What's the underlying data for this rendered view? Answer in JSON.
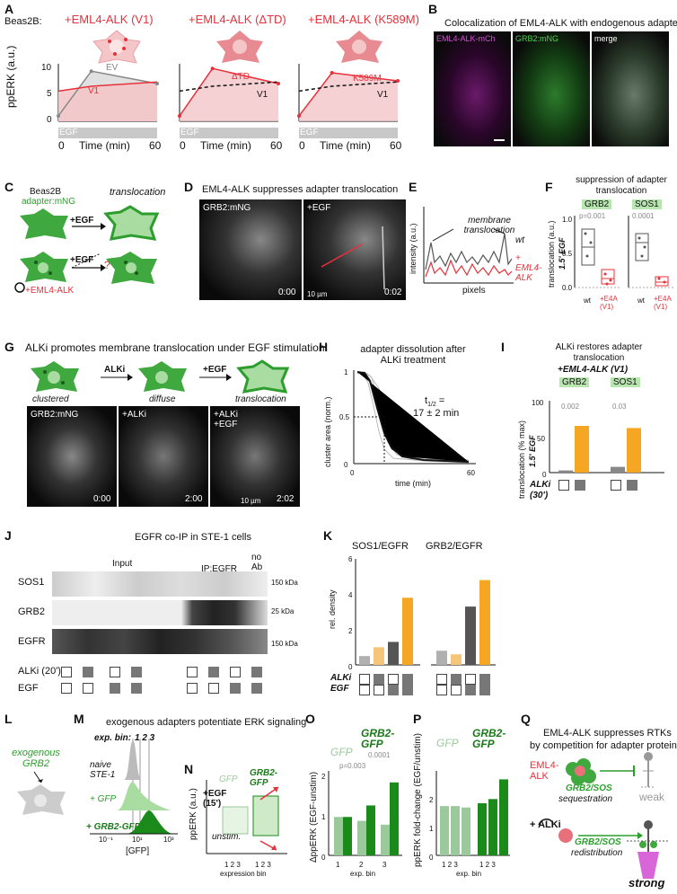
{
  "panels": {
    "A": {
      "label": "A",
      "cell_line": "Beas2B:",
      "titles": [
        "+EML4-ALK (V1)",
        "+EML4-ALK (ΔTD)",
        "+EML4-ALK (K589M)"
      ],
      "ylabel": "ppERK (a.u.)",
      "xlabel": "Time (min)",
      "yticks": [
        "0",
        "5",
        "10"
      ],
      "xticks": [
        "0",
        "20",
        "40",
        "60"
      ],
      "egf": "EGF",
      "series_labels": [
        "EV",
        "V1",
        "ΔTD",
        "V1",
        "K589M",
        "V1"
      ]
    },
    "B": {
      "label": "B",
      "title": "Colocalization of EML4-ALK with endogenous adapters",
      "channels": [
        "EML4-ALK-mCh",
        "GRB2:mNG",
        "merge"
      ]
    },
    "C": {
      "label": "C",
      "cell": "Beas2B",
      "adapter": "adapter:mNG",
      "egf1": "+EGF",
      "egf2": "+EGF",
      "translocation": "translocation",
      "question": "?",
      "plasmid": "+EML4-ALK"
    },
    "D": {
      "label": "D",
      "title": "EML4-ALK suppresses adapter translocation",
      "grb2": "GRB2:mNG",
      "egf": "+EGF",
      "time1": "0:00",
      "time2": "0:02",
      "scale": "10 µm"
    },
    "E": {
      "label": "E",
      "annotation": "membrane translocation",
      "wt": "wt",
      "eml4": "+ EML4-ALK",
      "ylabel": "intensity (a.u.)",
      "xlabel": "pixels"
    },
    "F": {
      "label": "F",
      "title": "suppression of adapter translocation",
      "proteins": [
        "GRB2",
        "SOS1"
      ],
      "pvalues": [
        "p=0.001",
        "0.0001"
      ],
      "ylabel": "translocation (a.u.)",
      "ysub": "1.5' EGF",
      "yticks": [
        "0.0",
        "0.5",
        "1.0"
      ],
      "xlabels": [
        "wt",
        "+E4A (V1)",
        "wt",
        "+E4A (V1)"
      ]
    },
    "G": {
      "label": "G",
      "title": "ALKi promotes membrane translocation under EGF stimulation",
      "states": [
        "clustered",
        "diffuse",
        "translocation"
      ],
      "arrows": [
        "ALKi",
        "+EGF"
      ],
      "img_labels": [
        "GRB2:mNG",
        "+ALKi",
        "+ALKi +EGF"
      ],
      "times": [
        "0:00",
        "2:00",
        "2:02"
      ],
      "scale": "10 µm"
    },
    "H": {
      "label": "H",
      "title": "adapter dissolution after ALKi treatment",
      "ylabel": "cluster area (norm.)",
      "xlabel": "time (min)",
      "yticks": [
        "0",
        "0.5",
        "1"
      ],
      "xticks": [
        "0",
        "20",
        "40",
        "60"
      ],
      "half_life": "t",
      "half_sub": "1/2",
      "half_eq": " =",
      "half_val": "17 ± 2 min"
    },
    "I": {
      "label": "I",
      "title": "ALKi restores adapter translocation",
      "subtitle": "+EML4-ALK (V1)",
      "proteins": [
        "GRB2",
        "SOS1"
      ],
      "pvalues": [
        "0.002",
        "0.03"
      ],
      "ylabel": "translocation (% max)",
      "ysub": "1.5' EGF",
      "yticks": [
        "0",
        "50",
        "100"
      ],
      "alki": "ALKi",
      "alki_time": "(30')"
    },
    "J": {
      "label": "J",
      "title": "EGFR co-IP in STE-1 cells",
      "input": "Input",
      "ip": "IP:EGFR",
      "noab": "no Ab",
      "rows": [
        "SOS1",
        "GRB2",
        "EGFR"
      ],
      "kda": [
        "150 kDa",
        "25 kDa",
        "150 kDa"
      ],
      "cond_rows": [
        "ALKi (20')",
        "EGF"
      ]
    },
    "K": {
      "label": "K",
      "titles": [
        "SOS1/EGFR",
        "GRB2/EGFR"
      ],
      "ylabel": "rel. density",
      "yticks": [
        "0",
        "2",
        "4",
        "6"
      ],
      "rows": [
        "ALKi",
        "EGF"
      ]
    },
    "L": {
      "label": "L",
      "text": "exogenous GRB2"
    },
    "M": {
      "label": "M",
      "title": "exogenous adapters potentiate ERK signaling",
      "bin_label": "exp. bin:",
      "bins": "1 2 3",
      "rows": [
        "naive STE-1",
        "+ GFP",
        "+ GRB2-GFP"
      ],
      "xticks": [
        "10⁻¹",
        "10¹",
        "10³"
      ],
      "xlabel": "[GFP]"
    },
    "N": {
      "label": "N",
      "gfp": "GFP",
      "grb2gfp": "GRB2-GFP",
      "egf": "+EGF (15')",
      "unstim": "unstim.",
      "ylabel": "ppERK (a.u.)",
      "xticks": [
        "1 2 3",
        "1 2 3"
      ],
      "xlabel": "expression bin"
    },
    "O": {
      "label": "O",
      "gfp": "GFP",
      "grb2gfp": "GRB2-GFP",
      "pvalues": [
        "p=0.003",
        "0.0001"
      ],
      "ylabel": "ΔppERK (EGF-unstim)",
      "yticks": [
        "0",
        "1",
        "2"
      ],
      "xticks": [
        "1",
        "2",
        "3"
      ],
      "xlabel": "exp. bin"
    },
    "P": {
      "label": "P",
      "gfp": "GFP",
      "grb2gfp": "GRB2-GFP",
      "ylabel": "ppERK fold-change (EGF/unstim)",
      "yticks": [
        "0",
        "1",
        "2"
      ],
      "xticks": [
        "1 2 3",
        "1 2 3"
      ],
      "xlabel": "exp. bin"
    },
    "Q": {
      "label": "Q",
      "title1": "EML4-ALK suppresses RTKs",
      "title2": "by competition for adapter proteins",
      "eml4": "EML4-ALK",
      "seq": "GRB2/SOS",
      "seq2": "sequestration",
      "weak": "weak",
      "alki": "+ ALKi",
      "redis": "GRB2/SOS",
      "redis2": "redistribution",
      "strong": "strong"
    }
  },
  "chart_data": [
    {
      "panel": "A1",
      "type": "line",
      "x": [
        0,
        20,
        60
      ],
      "series": [
        {
          "name": "EV",
          "values": [
            1.0,
            9.3,
            7.0
          ]
        },
        {
          "name": "V1",
          "values": [
            5.6,
            6.5,
            7.3
          ]
        }
      ],
      "ylim": [
        0,
        10
      ],
      "xlim": [
        0,
        60
      ]
    },
    {
      "panel": "A2",
      "type": "line",
      "x": [
        0,
        20,
        60
      ],
      "series": [
        {
          "name": "ΔTD",
          "values": [
            1.0,
            9.8,
            7.0
          ]
        },
        {
          "name": "V1",
          "values": [
            5.6,
            6.5,
            7.3
          ]
        }
      ],
      "ylim": [
        0,
        10
      ],
      "xlim": [
        0,
        60
      ]
    },
    {
      "panel": "A3",
      "type": "line",
      "x": [
        0,
        20,
        60
      ],
      "series": [
        {
          "name": "K589M",
          "values": [
            1.0,
            9.0,
            7.5
          ]
        },
        {
          "name": "V1",
          "values": [
            5.6,
            6.5,
            7.3
          ]
        }
      ],
      "ylim": [
        0,
        10
      ],
      "xlim": [
        0,
        60
      ]
    },
    {
      "panel": "I",
      "type": "bar",
      "categories": [
        "GRB2 -ALKi",
        "GRB2 +ALKi",
        "SOS1 -ALKi",
        "SOS1 +ALKi"
      ],
      "values": [
        3,
        65,
        8,
        62
      ],
      "ylim": [
        0,
        100
      ]
    },
    {
      "panel": "K1",
      "type": "bar",
      "categories": [
        "-/-",
        "+/-",
        "-/+",
        "+/+"
      ],
      "values": [
        0.5,
        1.0,
        1.3,
        3.8
      ],
      "ylim": [
        0,
        6
      ]
    },
    {
      "panel": "K2",
      "type": "bar",
      "categories": [
        "-/-",
        "+/-",
        "-/+",
        "+/+"
      ],
      "values": [
        0.8,
        0.6,
        3.3,
        4.8
      ],
      "ylim": [
        0,
        6
      ]
    },
    {
      "panel": "O",
      "type": "bar",
      "categories": [
        "GFP 1",
        "GRB2-GFP 1",
        "GFP 2",
        "GRB2-GFP 2",
        "GFP 3",
        "GRB2-GFP 3"
      ],
      "values": [
        1.0,
        1.0,
        0.9,
        1.3,
        0.8,
        1.9
      ],
      "ylim": [
        0,
        2.2
      ]
    },
    {
      "panel": "P",
      "type": "bar",
      "categories": [
        "GFP 1",
        "GFP 2",
        "GFP 3",
        "GRB2-GFP 1",
        "GRB2-GFP 2",
        "GRB2-GFP 3"
      ],
      "values": [
        1.75,
        1.75,
        1.7,
        1.85,
        2.0,
        2.7
      ],
      "ylim": [
        0,
        3
      ]
    }
  ]
}
